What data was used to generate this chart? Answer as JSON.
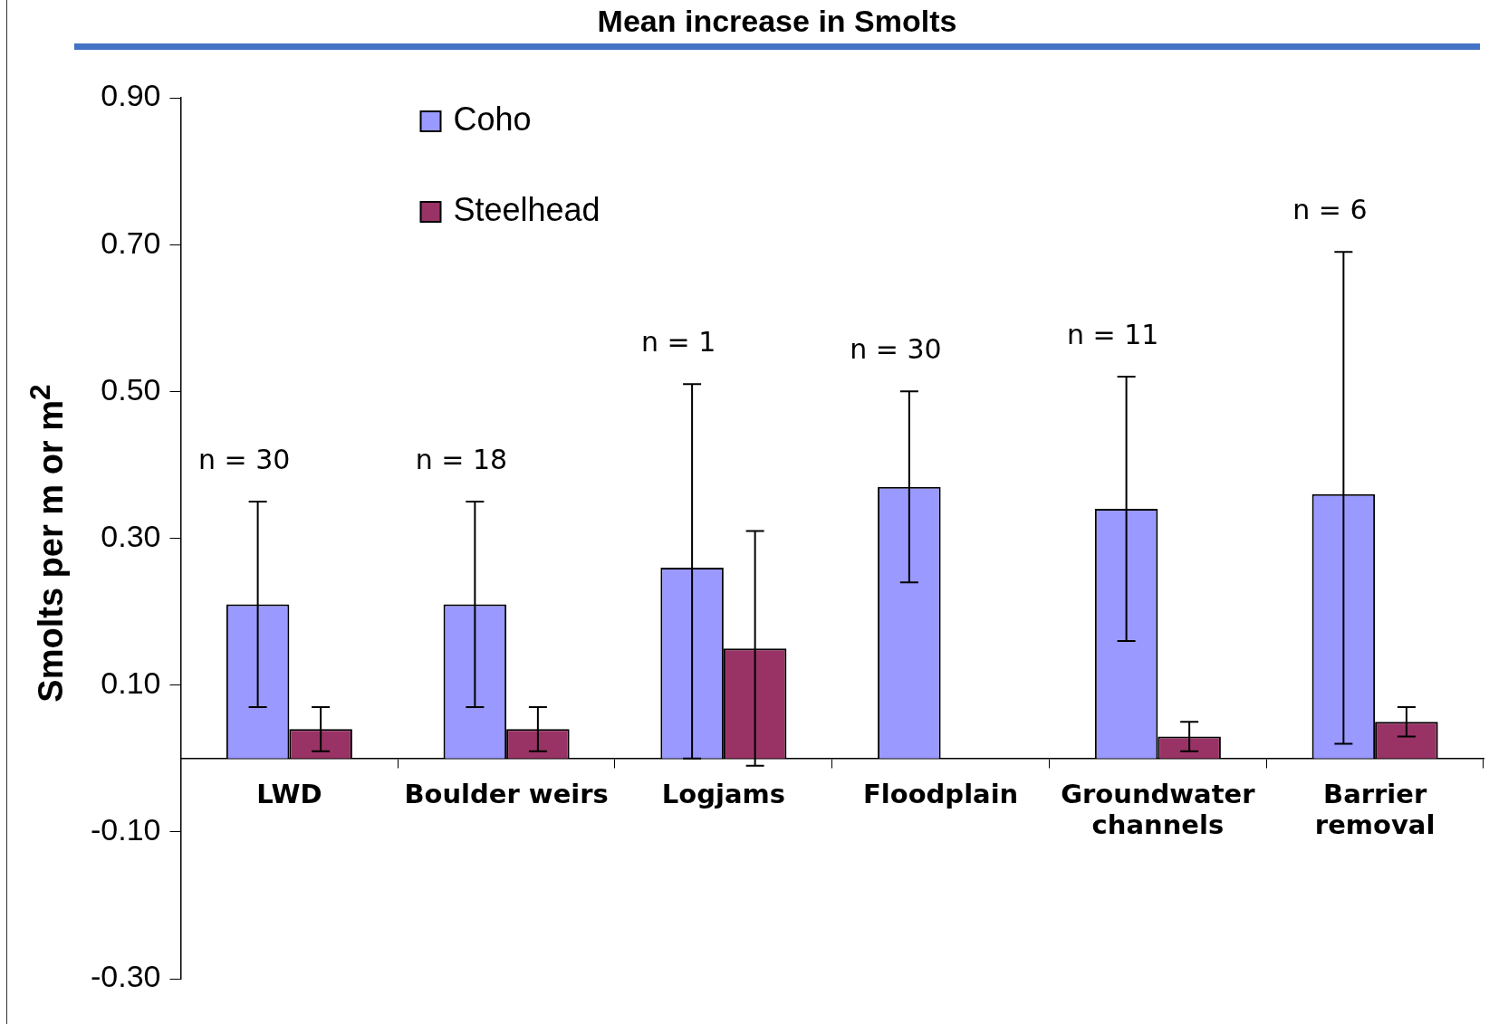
{
  "chart_data": {
    "type": "bar",
    "title": "Mean increase in Smolts",
    "ylabel": "Smolts per m or m$^{2}$",
    "categories": [
      "LWD",
      "Boulder weirs",
      "Logjams",
      "Floodplain",
      "Groundwater channels",
      "Barrier removal"
    ],
    "series": [
      {
        "name": "Coho",
        "color": "#9999ff",
        "values": [
          0.21,
          0.21,
          0.26,
          0.37,
          0.34,
          0.36
        ],
        "errors": [
          [
            0.07,
            0.35
          ],
          [
            0.07,
            0.35
          ],
          [
            0.0,
            0.51
          ],
          [
            0.24,
            0.5
          ],
          [
            0.16,
            0.52
          ],
          [
            0.02,
            0.69
          ]
        ]
      },
      {
        "name": "Steelhead",
        "color": "#993366",
        "values": [
          0.04,
          0.04,
          0.15,
          0,
          0.03,
          0.05
        ],
        "errors": [
          [
            0.01,
            0.07
          ],
          [
            0.01,
            0.07
          ],
          [
            -0.01,
            0.31
          ],
          null,
          [
            0.01,
            0.05
          ],
          [
            0.03,
            0.07
          ]
        ]
      }
    ],
    "ylim": [
      -0.3,
      0.9
    ],
    "yticks": [
      {
        "value": -0.3,
        "label": "-0.30"
      },
      {
        "value": -0.1,
        "label": "-0.10"
      },
      {
        "value": 0.1,
        "label": "0.10"
      },
      {
        "value": 0.3,
        "label": "0.30"
      },
      {
        "value": 0.5,
        "label": "0.50"
      },
      {
        "value": 0.7,
        "label": "0.70"
      },
      {
        "value": 0.9,
        "label": "0.90"
      }
    ],
    "annotations": [
      "n = 30",
      "n = 18",
      "n = 1",
      "n = 30",
      "n = 11",
      "n = 6"
    ],
    "grid": false,
    "legend": "top left"
  }
}
